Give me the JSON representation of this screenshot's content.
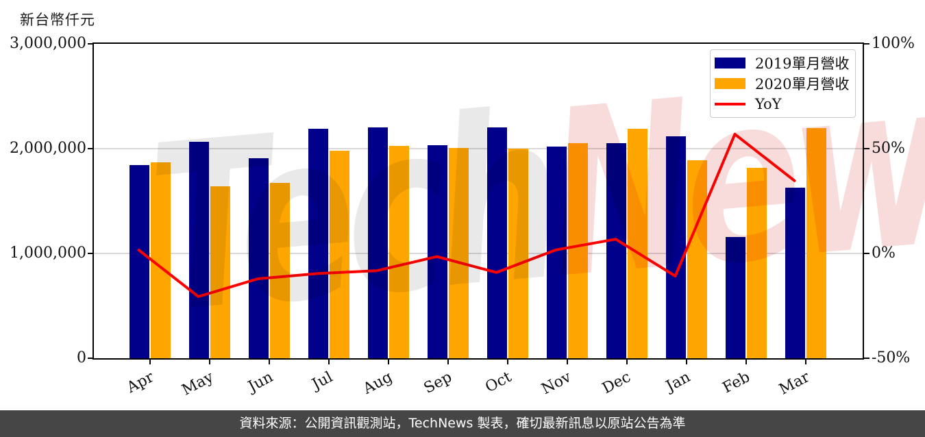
{
  "unit_label": "新台幣仟元",
  "watermark": {
    "part1": "Tech",
    "part2": "News",
    "color1": "#e9e9e9",
    "color2": "#f8dcdc"
  },
  "legend": {
    "items": [
      {
        "label": "2019單月營收",
        "swatch": "rect",
        "color": "#00008B"
      },
      {
        "label": "2020單月營收",
        "swatch": "rect",
        "color": "#FFA500"
      },
      {
        "label": "YoY",
        "swatch": "line",
        "color": "#FF0000"
      }
    ]
  },
  "footer": {
    "text": "資料來源：公開資訊觀測站，TechNews 製表，確切最新訊息以原站公告為準",
    "background": "#464646"
  },
  "colors": {
    "bar_2019": "#00008B",
    "bar_2020": "#FFA500",
    "yoy_line": "#FF0000",
    "gridline": "#d9d9d9",
    "axis": "#000000"
  },
  "chart_data": {
    "type": "bar",
    "title": "新台幣仟元",
    "xlabel": "",
    "ylabel": "新台幣仟元",
    "categories": [
      "Apr",
      "May",
      "Jun",
      "Jul",
      "Aug",
      "Sep",
      "Oct",
      "Nov",
      "Dec",
      "Jan",
      "Feb",
      "Mar"
    ],
    "series": [
      {
        "name": "2019單月營收",
        "type": "bar",
        "axis": "left",
        "color": "#00008B",
        "values": [
          1840000,
          2065000,
          1910000,
          2190000,
          2205000,
          2035000,
          2200000,
          2020000,
          2050000,
          2120000,
          1160000,
          1630000
        ]
      },
      {
        "name": "2020單月營收",
        "type": "bar",
        "axis": "left",
        "color": "#FFA500",
        "values": [
          1870000,
          1640000,
          1670000,
          1980000,
          2025000,
          2005000,
          2000000,
          2055000,
          2190000,
          1890000,
          1820000,
          2195000
        ]
      },
      {
        "name": "YoY",
        "type": "line",
        "axis": "right",
        "color": "#FF0000",
        "unit": "%",
        "values": [
          1.6,
          -20.6,
          -12.1,
          -9.6,
          -8.2,
          -1.5,
          -9.1,
          1.7,
          6.8,
          -10.8,
          56.9,
          34.7
        ]
      }
    ],
    "left_axis": {
      "range": [
        0,
        3000000
      ],
      "ticks": [
        {
          "label": "0",
          "value": 0
        },
        {
          "label": "1,000,000",
          "value": 1000000
        },
        {
          "label": "2,000,000",
          "value": 2000000
        },
        {
          "label": "3,000,000",
          "value": 3000000
        }
      ]
    },
    "right_axis": {
      "range": [
        -50,
        100
      ],
      "ticks": [
        {
          "label": "-50%",
          "value": -50
        },
        {
          "label": "0%",
          "value": 0
        },
        {
          "label": "50%",
          "value": 50
        },
        {
          "label": "100%",
          "value": 100
        }
      ]
    },
    "grid": true,
    "legend_position": "upper right"
  }
}
